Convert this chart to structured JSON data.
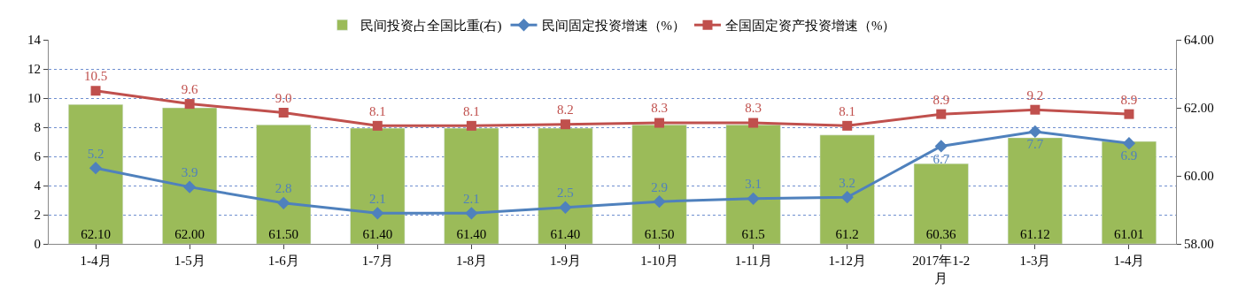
{
  "chart_data": {
    "type": "bar",
    "categories": [
      "1-4月",
      "1-5月",
      "1-6月",
      "1-7月",
      "1-8月",
      "1-9月",
      "1-10月",
      "1-11月",
      "1-12月",
      "2017年1-2月",
      "1-3月",
      "1-4月"
    ],
    "series": [
      {
        "name": "民间投资占全国比重(右)",
        "axis": "y2",
        "color": "#9bbb59",
        "values": [
          62.1,
          62.0,
          61.5,
          61.4,
          61.4,
          61.4,
          61.5,
          61.5,
          61.2,
          60.36,
          61.12,
          61.01
        ],
        "value_labels": [
          "62.10",
          "62.00",
          "61.50",
          "61.40",
          "61.40",
          "61.40",
          "61.50",
          "61.5",
          "61.2",
          "60.36",
          "61.12",
          "61.01"
        ]
      },
      {
        "name": "民间固定投资增速（%）",
        "type": "line",
        "color": "#4f81bd",
        "marker": "diamond",
        "values": [
          5.2,
          3.9,
          2.8,
          2.1,
          2.1,
          2.5,
          2.9,
          3.1,
          3.2,
          6.7,
          7.7,
          6.9
        ],
        "value_labels": [
          "5.2",
          "3.9",
          "2.8",
          "2.1",
          "2.1",
          "2.5",
          "2.9",
          "3.1",
          "3.2",
          "6.7",
          "7.7",
          "6.9"
        ]
      },
      {
        "name": "全国固定资产投资增速（%）",
        "type": "line",
        "color": "#c0504d",
        "marker": "square",
        "values": [
          10.5,
          9.6,
          9.0,
          8.1,
          8.1,
          8.2,
          8.3,
          8.3,
          8.1,
          8.9,
          9.2,
          8.9
        ],
        "value_labels": [
          "10.5",
          "9.6",
          "9.0",
          "8.1",
          "8.1",
          "8.2",
          "8.3",
          "8.3",
          "8.1",
          "8.9",
          "9.2",
          "8.9"
        ]
      }
    ],
    "ylim": [
      0,
      14
    ],
    "yticks": [
      0,
      2,
      4,
      6,
      8,
      10,
      12,
      14
    ],
    "y2lim": [
      58,
      64
    ],
    "y2ticks": [
      {
        "value": 58,
        "label": "58.00"
      },
      {
        "value": 60,
        "label": "60.00"
      },
      {
        "value": 62,
        "label": "62.00"
      },
      {
        "value": 64,
        "label": "64.00"
      }
    ],
    "grid": "y",
    "legend": "top"
  }
}
